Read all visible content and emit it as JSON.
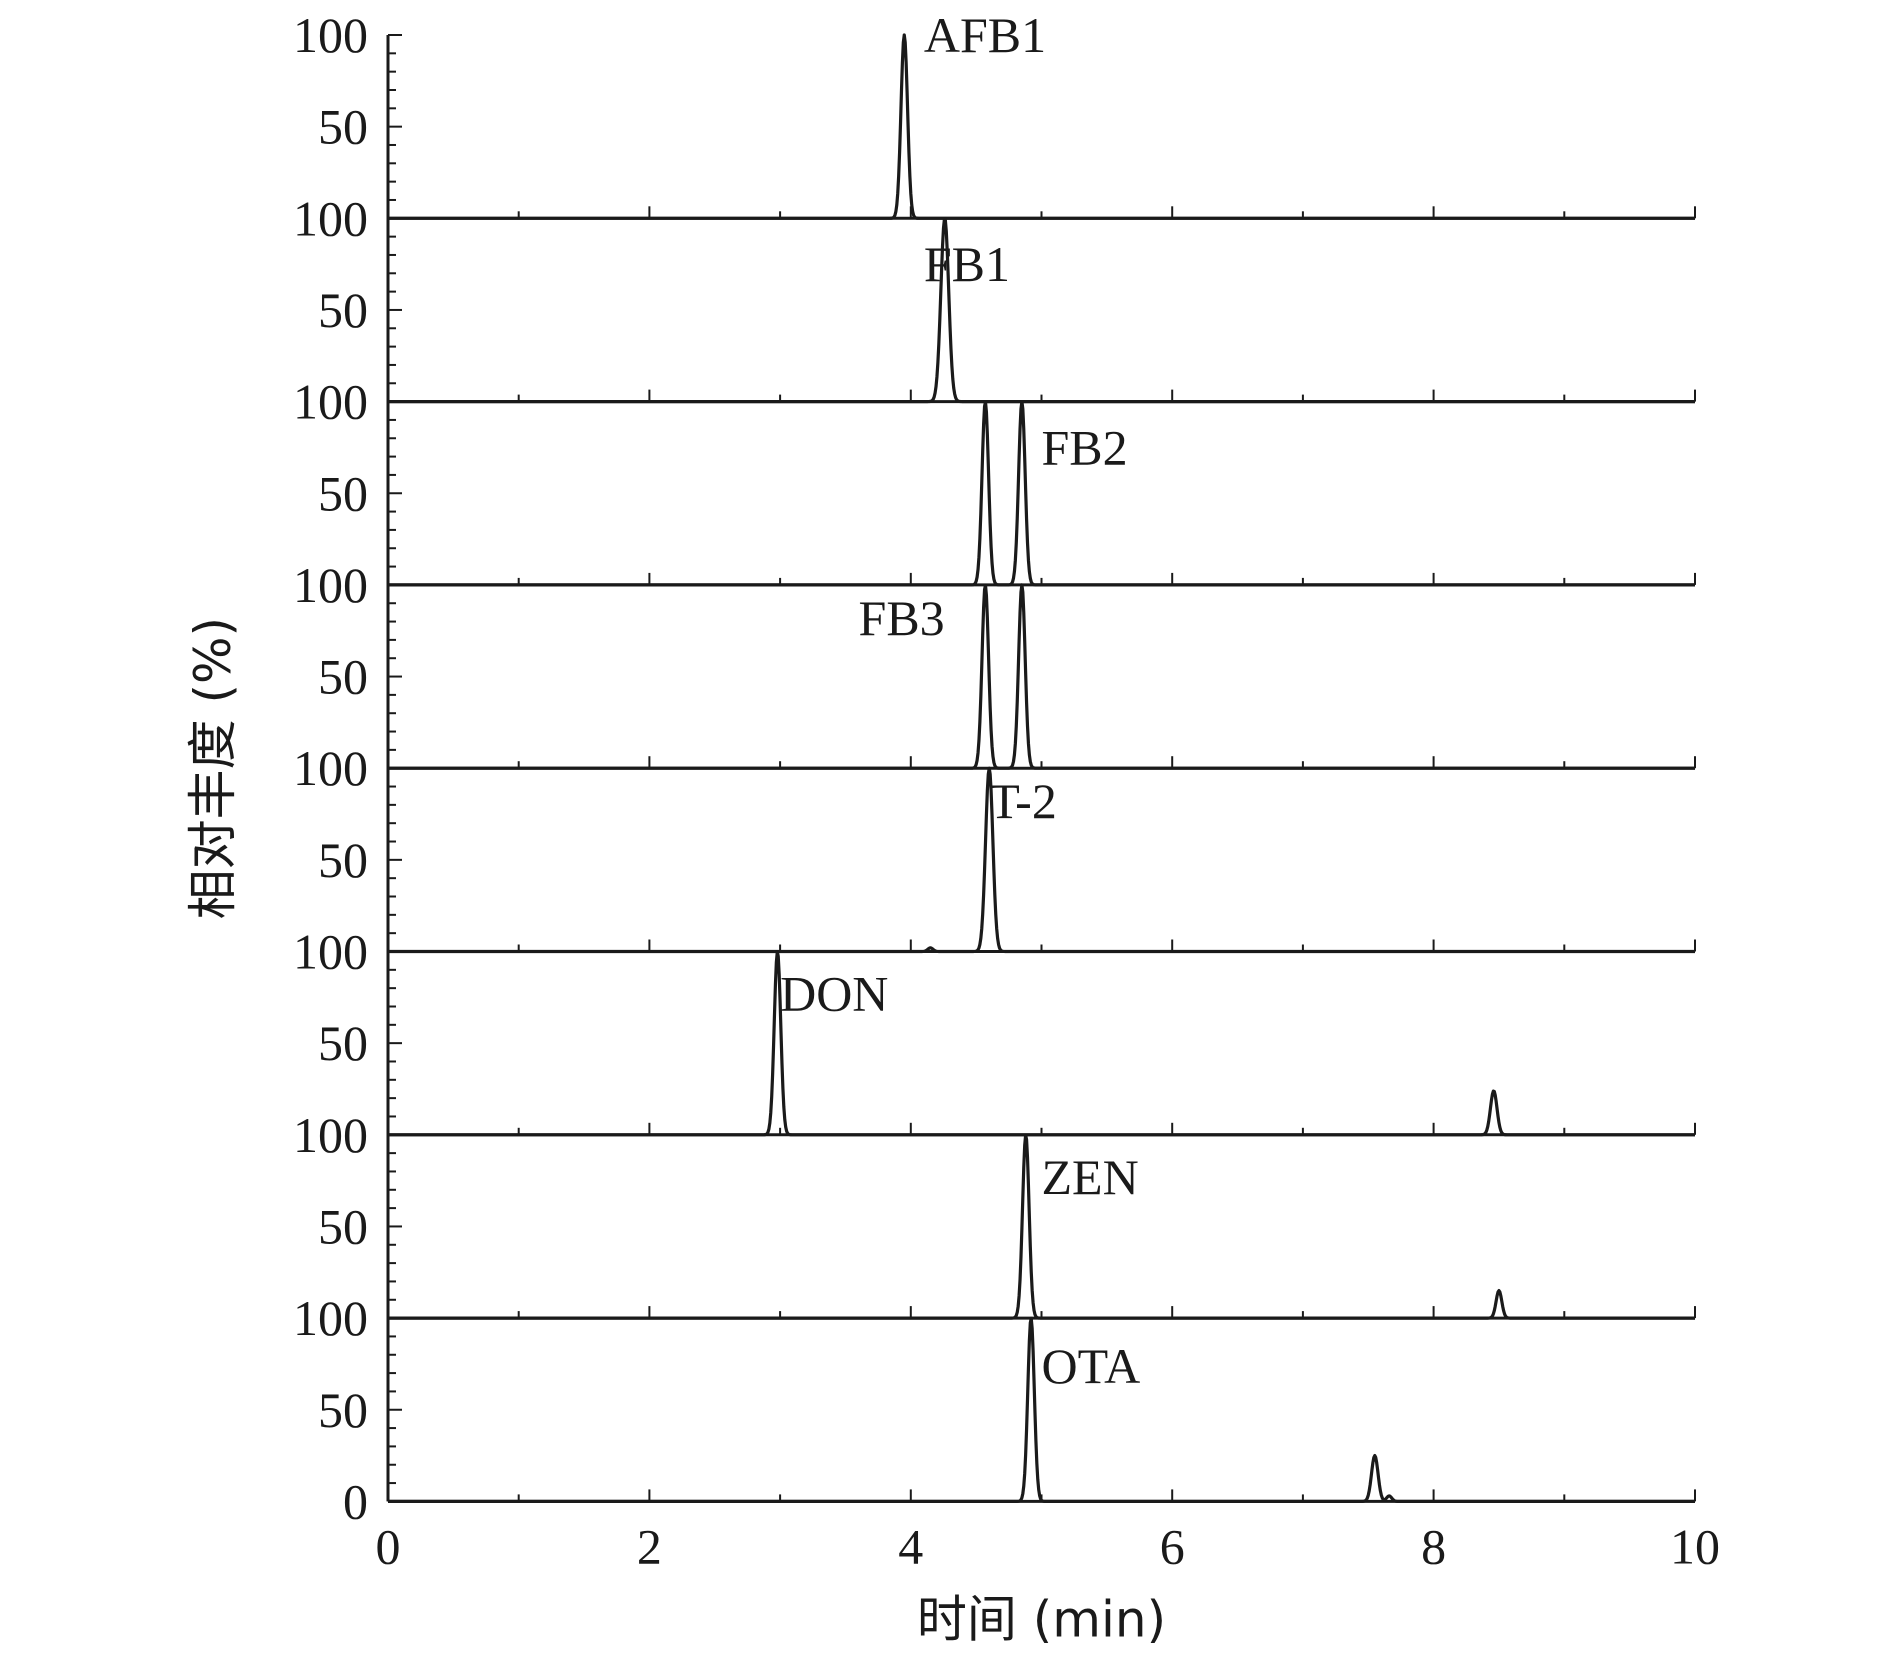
{
  "chart_data": {
    "type": "line",
    "title": "",
    "xlabel": "时间 (min)",
    "ylabel": "相对丰度 (%)",
    "xlim": [
      0,
      10
    ],
    "x_ticks": [
      "0",
      "2",
      "4",
      "6",
      "8",
      "10"
    ],
    "ylim_per_panel": [
      0,
      100
    ],
    "y_tick_labels": [
      "100",
      "50",
      "0"
    ],
    "grid": false,
    "panels": [
      {
        "label": "AFB1",
        "label_at": [
          4.1,
          100
        ],
        "peaks": [
          {
            "x": 3.95,
            "y": 100,
            "w": 0.025
          }
        ]
      },
      {
        "label": "FB1",
        "label_at": [
          4.1,
          75
        ],
        "peaks": [
          {
            "x": 4.26,
            "y": 100,
            "w": 0.03
          }
        ]
      },
      {
        "label": "FB2",
        "label_at": [
          5.0,
          75
        ],
        "peaks": [
          {
            "x": 4.57,
            "y": 100,
            "w": 0.025
          },
          {
            "x": 4.85,
            "y": 100,
            "w": 0.025
          }
        ]
      },
      {
        "label": "FB3",
        "label_at": [
          3.6,
          82
        ],
        "peaks": [
          {
            "x": 4.57,
            "y": 100,
            "w": 0.025
          },
          {
            "x": 4.85,
            "y": 100,
            "w": 0.025
          }
        ]
      },
      {
        "label": "T-2",
        "label_at": [
          4.6,
          82
        ],
        "peaks": [
          {
            "x": 4.6,
            "y": 100,
            "w": 0.028
          },
          {
            "x": 4.15,
            "y": 2,
            "w": 0.02
          }
        ]
      },
      {
        "label": "DON",
        "label_at": [
          3.0,
          77
        ],
        "peaks": [
          {
            "x": 2.98,
            "y": 100,
            "w": 0.025
          },
          {
            "x": 8.46,
            "y": 24,
            "w": 0.025
          }
        ]
      },
      {
        "label": "ZEN",
        "label_at": [
          5.0,
          77
        ],
        "peaks": [
          {
            "x": 4.88,
            "y": 100,
            "w": 0.025
          },
          {
            "x": 8.5,
            "y": 15,
            "w": 0.022
          }
        ]
      },
      {
        "label": "OTA",
        "label_at": [
          5.0,
          74
        ],
        "peaks": [
          {
            "x": 4.92,
            "y": 100,
            "w": 0.025
          },
          {
            "x": 7.55,
            "y": 25,
            "w": 0.025
          },
          {
            "x": 7.66,
            "y": 3,
            "w": 0.02
          }
        ]
      }
    ]
  }
}
